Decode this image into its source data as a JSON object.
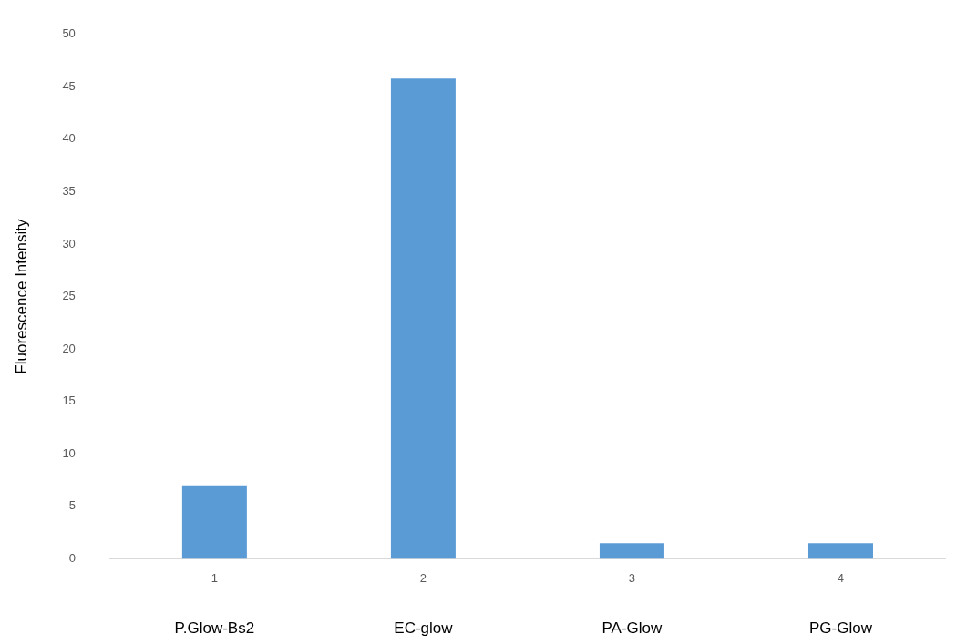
{
  "chart_data": {
    "type": "bar",
    "ylabel": "Fluorescence Intensity",
    "categories": [
      "1",
      "2",
      "3",
      "4"
    ],
    "values": [
      7,
      45.8,
      1.5,
      1.5
    ],
    "color": "#5b9bd5",
    "ylim": [
      0,
      50
    ],
    "yticks": [
      0,
      5,
      10,
      15,
      20,
      25,
      30,
      35,
      40,
      45,
      50
    ],
    "grid": false,
    "legend": false,
    "annotations": [
      "P.Glow-Bs2",
      "EC-glow",
      "PA-Glow",
      "PG-Glow"
    ]
  }
}
